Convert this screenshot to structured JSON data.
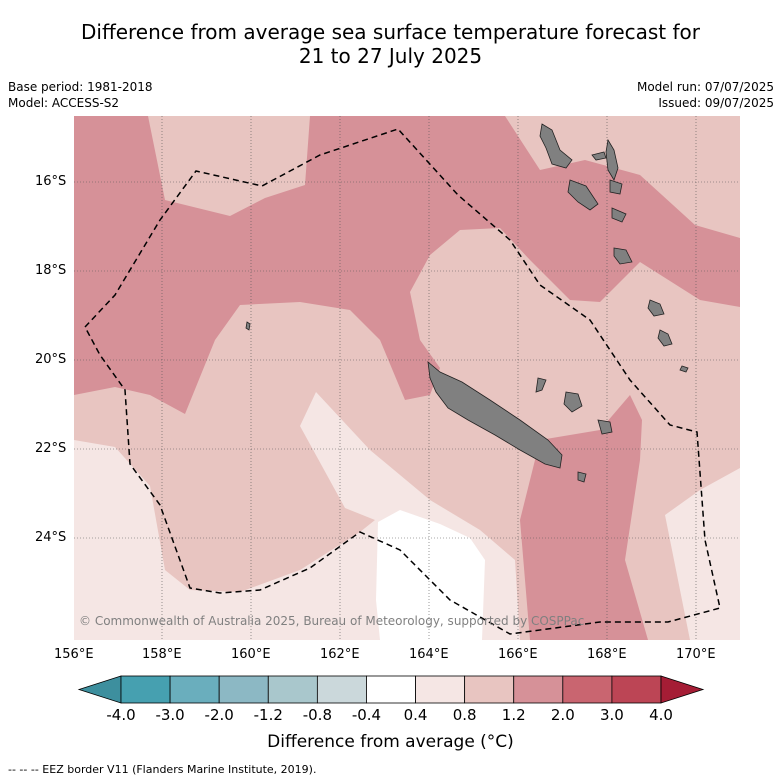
{
  "title_line1": "Difference from average sea surface temperature forecast for",
  "title_line2": "21 to 27 July 2025",
  "base_period": "Base period: 1981-2018",
  "model": "Model: ACCESS-S2",
  "model_run": "Model run: 07/07/2025",
  "issued": "Issued: 09/07/2025",
  "copyright": "© Commonwealth of Australia 2025, Bureau of Meteorology, supported by COSPPac",
  "lat_labels": [
    "16°S",
    "18°S",
    "20°S",
    "22°S",
    "24°S"
  ],
  "lon_labels": [
    "156°E",
    "158°E",
    "160°E",
    "162°E",
    "164°E",
    "166°E",
    "168°E",
    "170°E"
  ],
  "colorbar": {
    "labels": [
      "-4.0",
      "-3.0",
      "-2.0",
      "-1.2",
      "-0.8",
      "-0.4",
      "0.4",
      "0.8",
      "1.2",
      "2.0",
      "3.0",
      "4.0"
    ],
    "colors": [
      "#3d8f9e",
      "#46a0b0",
      "#6aaebd",
      "#8cb8c4",
      "#a9c7cc",
      "#cbd8db",
      "#ffffff",
      "#f5e6e4",
      "#e8c5c1",
      "#d69198",
      "#c96570",
      "#bc4555",
      "#a51d35"
    ],
    "title": "Difference from average (°C)"
  },
  "footnote": "-- -- -- EEZ border V11 (Flanders Marine Institute, 2019).",
  "legend_colors": {
    "very_light": "#f5e6e4",
    "light": "#e8c5c1",
    "medium": "#d69198",
    "land": "#808080"
  }
}
